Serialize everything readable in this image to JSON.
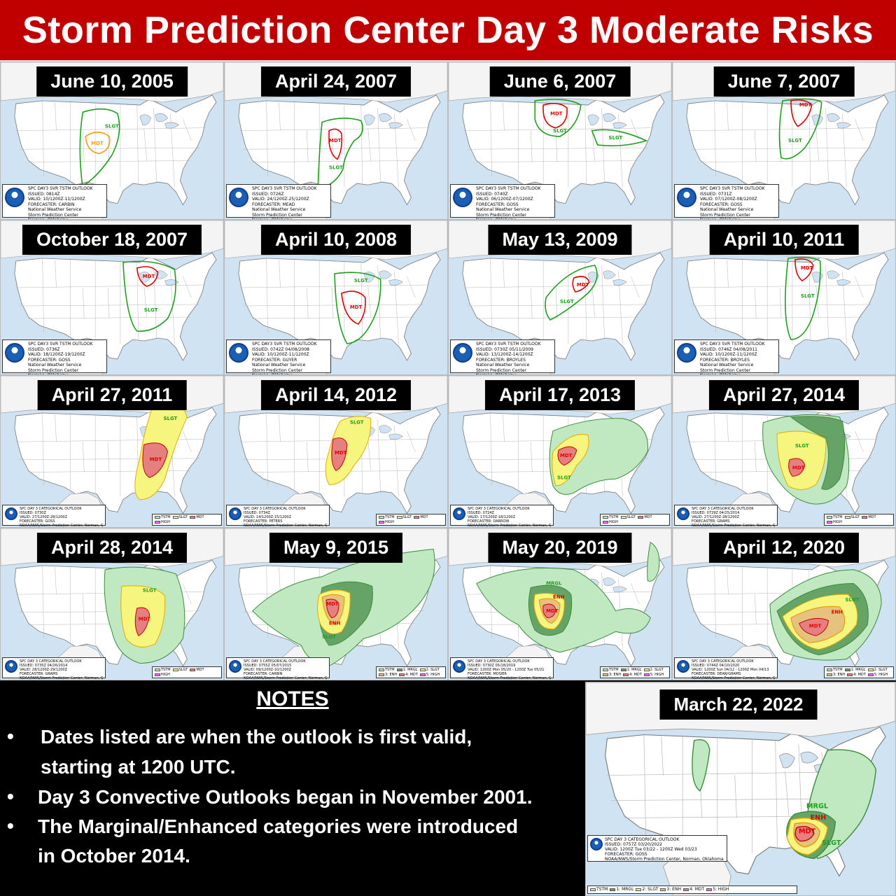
{
  "title": "Storm Prediction Center Day 3 Moderate Risks",
  "colors": {
    "title_bg": "#c00000",
    "tstm": "#c1e9c1",
    "mrgl": "#66a366",
    "slgt": "#f6f67f",
    "enh": "#e6c27f",
    "mdt": "#e67f7f",
    "high": "#ff66ff",
    "old_slgt_line": "#1e9e1e",
    "old_mdt_line": "#e00000",
    "old_2005_mdt": "#f39c12"
  },
  "panels": [
    {
      "date": "June 10, 2005",
      "style": "old",
      "scheme": "early",
      "labels": [
        "SLGT",
        "MDT"
      ],
      "info": [
        "SPC DAY3 SVR TSTM OUTLOOK",
        "ISSUED: 0814Z",
        "VALID: 10/1200Z-11/1200Z",
        "FORECASTER: CARBIN",
        "National Weather Service",
        "Storm Prediction Center",
        "Norman, Oklahoma"
      ]
    },
    {
      "date": "April 24, 2007",
      "style": "old",
      "labels": [
        "MDT",
        "SLGT"
      ],
      "info": [
        "SPC DAY3 SVR TSTM OUTLOOK",
        "ISSUED: 0726Z",
        "VALID: 24/1200Z-25/1200Z",
        "FORECASTER: MEAD",
        "National Weather Service",
        "Storm Prediction Center",
        "Norman, Oklahoma"
      ]
    },
    {
      "date": "June 6, 2007",
      "style": "old",
      "labels": [
        "MDT",
        "SLGT",
        "SLGT"
      ],
      "info": [
        "SPC DAY3 SVR TSTM OUTLOOK",
        "ISSUED: 0740Z",
        "VALID: 06/1200Z-07/1200Z",
        "FORECASTER: GOSS",
        "National Weather Service",
        "Storm Prediction Center",
        "Norman, Oklahoma"
      ]
    },
    {
      "date": "June 7, 2007",
      "style": "old",
      "labels": [
        "MDT",
        "SLGT"
      ],
      "info": [
        "SPC DAY3 SVR TSTM OUTLOOK",
        "ISSUED: 0731Z",
        "VALID: 07/1200Z-08/1200Z",
        "FORECASTER: GOSS",
        "National Weather Service",
        "Storm Prediction Center",
        "Norman, Oklahoma"
      ]
    },
    {
      "date": "October 18, 2007",
      "style": "old",
      "labels": [
        "MDT",
        "SLGT"
      ],
      "info": [
        "SPC DAY3 SVR TSTM OUTLOOK",
        "ISSUED: 0736Z",
        "VALID: 18/1200Z-19/1200Z",
        "FORECASTER: GOSS",
        "National Weather Service",
        "Storm Prediction Center",
        "Norman, Oklahoma"
      ]
    },
    {
      "date": "April 10, 2008",
      "style": "old",
      "labels": [
        "SLGT",
        "MDT"
      ],
      "info": [
        "SPC DAY3 SVR TSTM OUTLOOK",
        "ISSUED: 0742Z 04/08/2008",
        "VALID: 10/1200Z-11/1200Z",
        "FORECASTER: GUYER",
        "National Weather Service",
        "Storm Prediction Center",
        "Norman, Oklahoma"
      ]
    },
    {
      "date": "May 13, 2009",
      "style": "old",
      "labels": [
        "MDT",
        "SLGT"
      ],
      "info": [
        "SPC DAY3 SVR TSTM OUTLOOK",
        "ISSUED: 0730Z 05/11/2009",
        "VALID: 13/1200Z-14/1200Z",
        "FORECASTER: BROYLES",
        "National Weather Service",
        "Storm Prediction Center",
        "Norman, Oklahoma"
      ]
    },
    {
      "date": "April 10, 2011",
      "style": "old",
      "labels": [
        "MDT",
        "SLGT"
      ],
      "info": [
        "SPC DAY3 SVR TSTM OUTLOOK",
        "ISSUED: 0746Z 04/08/2011",
        "VALID: 10/1200Z-11/1200Z",
        "FORECASTER: BROYLES",
        "National Weather Service",
        "Storm Prediction Center",
        "Norman, Oklahoma"
      ]
    },
    {
      "date": "April 27, 2011",
      "style": "cat",
      "labels": [
        "SLGT",
        "MDT"
      ],
      "info": [
        "SPC DAY 3 CATEGORICAL OUTLOOK",
        "ISSUED: 0730Z",
        "VALID: 27/1200Z-28/1200Z",
        "FORECASTER: GOSS",
        "NOAA/NWS/Storm Prediction Center, Norman, Oklahoma"
      ],
      "legend": [
        "TSTM",
        "SLGT",
        "MDT",
        "HIGH"
      ]
    },
    {
      "date": "April 14, 2012",
      "style": "cat",
      "labels": [
        "SLGT",
        "MDT"
      ],
      "info": [
        "SPC DAY 3 CATEGORICAL OUTLOOK",
        "ISSUED: 0734Z",
        "VALID: 14/1200Z-15/1200Z",
        "FORECASTER: PETERS",
        "NOAA/NWS/Storm Prediction Center, Norman, Oklahoma"
      ],
      "legend": [
        "TSTM",
        "SLGT",
        "MDT",
        "HIGH"
      ]
    },
    {
      "date": "April 17, 2013",
      "style": "cat",
      "labels": [
        "MDT",
        "SLGT"
      ],
      "info": [
        "SPC DAY 3 CATEGORICAL OUTLOOK",
        "ISSUED: 0724Z",
        "VALID: 17/1200Z-18/1200Z",
        "FORECASTER: DARROW",
        "NOAA/NWS/Storm Prediction Center, Norman, Oklahoma"
      ],
      "legend": [
        "TSTM",
        "SLGT",
        "MDT",
        "HIGH"
      ]
    },
    {
      "date": "April 27, 2014",
      "style": "cat",
      "labels": [
        "SLGT",
        "MDT"
      ],
      "info": [
        "SPC DAY 3 CATEGORICAL OUTLOOK",
        "ISSUED: 0729Z 04/25/2014",
        "VALID: 27/1200Z-28/1200Z",
        "FORECASTER: GRAMS",
        "NOAA/NWS/Storm Prediction Center, Norman, Oklahoma"
      ],
      "legend": [
        "TSTM",
        "SLGT",
        "MDT",
        "HIGH"
      ]
    },
    {
      "date": "April 28, 2014",
      "style": "cat",
      "labels": [
        "SLGT",
        "MDT"
      ],
      "info": [
        "SPC DAY 3 CATEGORICAL OUTLOOK",
        "ISSUED: 0735Z 04/26/2014",
        "VALID: 28/1200Z-29/1200Z",
        "FORECASTER: GRAMS",
        "NOAA/NWS/Storm Prediction Center, Norman, Oklahoma"
      ],
      "legend": [
        "TSTM",
        "SLGT",
        "MDT",
        "HIGH"
      ]
    },
    {
      "date": "May 9, 2015",
      "style": "new",
      "labels": [
        "MDT",
        "ENH",
        "SLGT"
      ],
      "info": [
        "SPC DAY 3 CATEGORICAL OUTLOOK",
        "ISSUED: 0755Z 05/07/2015",
        "VALID: 09/1200Z-10/1200Z",
        "FORECASTER: CARBIN",
        "NOAA/NWS/Storm Prediction Center, Norman, Oklahoma"
      ],
      "legend": [
        "TSTM",
        "1: MRGL",
        "2: SLGT",
        "3: ENH",
        "4: MDT",
        "5: HIGH"
      ]
    },
    {
      "date": "May 20, 2019",
      "style": "new",
      "labels": [
        "MRGL",
        "ENH",
        "MDT"
      ],
      "info": [
        "SPC DAY 3 CATEGORICAL OUTLOOK",
        "ISSUED: 0730Z 05/18/2019",
        "VALID: 1200Z Mon 05/20 - 1200Z Tue 05/21",
        "FORECASTER: MOSIER",
        "NOAA/NWS/Storm Prediction Center, Norman, Oklahoma"
      ],
      "legend": [
        "TSTM",
        "1: MRGL",
        "2: SLGT",
        "3: ENH",
        "4: MDT",
        "5: HIGH"
      ]
    },
    {
      "date": "April 12, 2020",
      "style": "new",
      "labels": [
        "SLGT",
        "ENH",
        "MDT"
      ],
      "info": [
        "SPC DAY 3 CATEGORICAL OUTLOOK",
        "ISSUED: 0744Z 04/10/2020",
        "VALID: 1200Z Sun 04/12 - 1200Z Mon 04/13",
        "FORECASTER: DEAN/GRAMS",
        "NOAA/NWS/Storm Prediction Center, Norman, Oklahoma"
      ],
      "legend": [
        "TSTM",
        "1: MRGL",
        "2: SLGT",
        "3: ENH",
        "4: MDT",
        "5: HIGH"
      ]
    },
    {
      "date": "March 22, 2022",
      "style": "new",
      "labels": [
        "MRGL",
        "ENH",
        "MDT",
        "SLGT"
      ],
      "info": [
        "SPC DAY 3 CATEGORICAL OUTLOOK",
        "ISSUED: 0757Z 03/20/2022",
        "VALID: 1200Z Tue 03/22 - 1200Z Wed 03/23",
        "FORECASTER: GOSS",
        "NOAA/NWS/Storm Prediction Center, Norman, Oklahoma"
      ],
      "legend": [
        "TSTM",
        "1: MRGL",
        "2: SLGT",
        "3: ENH",
        "4: MDT",
        "5: HIGH"
      ]
    }
  ],
  "notes": {
    "heading": "NOTES",
    "bullet": "•",
    "items": [
      [
        "Dates listed are when the outlook is first valid,",
        "starting at 1200 UTC."
      ],
      [
        "Day 3 Convective Outlooks began in November 2001."
      ],
      [
        "The Marginal/Enhanced categories were introduced",
        "in October 2014."
      ]
    ]
  }
}
